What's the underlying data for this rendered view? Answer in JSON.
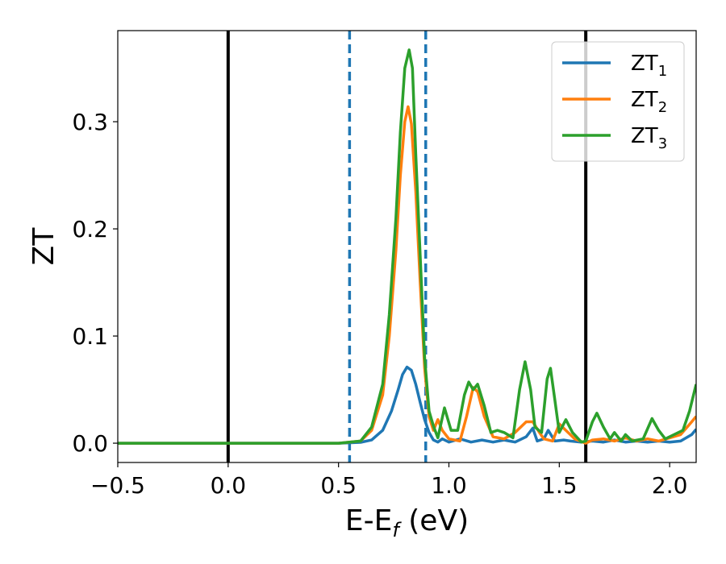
{
  "chart_data": {
    "type": "line",
    "xlabel": "E-E",
    "xlabel_sub": "f",
    "xlabel_unit": " (eV)",
    "ylabel": "ZT",
    "xlim": [
      -0.5,
      2.12
    ],
    "ylim": [
      -0.018,
      0.385
    ],
    "xticks": [
      -0.5,
      0.0,
      0.5,
      1.0,
      1.5,
      2.0
    ],
    "xtick_labels": [
      "−0.5",
      "0.0",
      "0.5",
      "1.0",
      "1.5",
      "2.0"
    ],
    "yticks": [
      0.0,
      0.1,
      0.2,
      0.3
    ],
    "ytick_labels": [
      "0.0",
      "0.1",
      "0.2",
      "0.3"
    ],
    "grid": false,
    "legend_position": "top-right",
    "vlines_solid": [
      0.0,
      1.62
    ],
    "vlines_dashed": [
      0.55,
      0.895
    ],
    "series": [
      {
        "name": "ZT",
        "name_sub": "1",
        "color": "#1f77b4",
        "points": [
          [
            -0.5,
            0
          ],
          [
            0.5,
            0
          ],
          [
            0.6,
            0.0008
          ],
          [
            0.65,
            0.003
          ],
          [
            0.7,
            0.012
          ],
          [
            0.74,
            0.03
          ],
          [
            0.77,
            0.05
          ],
          [
            0.79,
            0.064
          ],
          [
            0.81,
            0.071
          ],
          [
            0.83,
            0.068
          ],
          [
            0.85,
            0.055
          ],
          [
            0.87,
            0.038
          ],
          [
            0.89,
            0.022
          ],
          [
            0.91,
            0.01
          ],
          [
            0.93,
            0.003
          ],
          [
            0.95,
            0.001
          ],
          [
            0.97,
            0.004
          ],
          [
            1.0,
            0.001
          ],
          [
            1.05,
            0.004
          ],
          [
            1.1,
            0.001
          ],
          [
            1.15,
            0.003
          ],
          [
            1.2,
            0.001
          ],
          [
            1.25,
            0.003
          ],
          [
            1.3,
            0.001
          ],
          [
            1.35,
            0.006
          ],
          [
            1.38,
            0.014
          ],
          [
            1.4,
            0.002
          ],
          [
            1.43,
            0.004
          ],
          [
            1.45,
            0.012
          ],
          [
            1.48,
            0.002
          ],
          [
            1.52,
            0.003
          ],
          [
            1.55,
            0.002
          ],
          [
            1.6,
            0.001
          ],
          [
            1.65,
            0.002
          ],
          [
            1.7,
            0.001
          ],
          [
            1.75,
            0.003
          ],
          [
            1.8,
            0.001
          ],
          [
            1.85,
            0.002
          ],
          [
            1.9,
            0.001
          ],
          [
            1.95,
            0.002
          ],
          [
            2.0,
            0.001
          ],
          [
            2.05,
            0.002
          ],
          [
            2.1,
            0.008
          ],
          [
            2.12,
            0.013
          ]
        ]
      },
      {
        "name": "ZT",
        "name_sub": "2",
        "color": "#ff7f0e",
        "points": [
          [
            -0.5,
            0
          ],
          [
            0.5,
            0
          ],
          [
            0.6,
            0.002
          ],
          [
            0.65,
            0.012
          ],
          [
            0.7,
            0.045
          ],
          [
            0.73,
            0.1
          ],
          [
            0.76,
            0.18
          ],
          [
            0.78,
            0.25
          ],
          [
            0.8,
            0.3
          ],
          [
            0.815,
            0.314
          ],
          [
            0.83,
            0.298
          ],
          [
            0.85,
            0.235
          ],
          [
            0.87,
            0.15
          ],
          [
            0.89,
            0.07
          ],
          [
            0.91,
            0.025
          ],
          [
            0.93,
            0.012
          ],
          [
            0.95,
            0.022
          ],
          [
            0.97,
            0.012
          ],
          [
            1.0,
            0.004
          ],
          [
            1.05,
            0.002
          ],
          [
            1.08,
            0.025
          ],
          [
            1.11,
            0.052
          ],
          [
            1.13,
            0.048
          ],
          [
            1.16,
            0.025
          ],
          [
            1.2,
            0.006
          ],
          [
            1.25,
            0.004
          ],
          [
            1.3,
            0.01
          ],
          [
            1.35,
            0.02
          ],
          [
            1.38,
            0.02
          ],
          [
            1.41,
            0.01
          ],
          [
            1.43,
            0.004
          ],
          [
            1.47,
            0.002
          ],
          [
            1.5,
            0.018
          ],
          [
            1.53,
            0.012
          ],
          [
            1.57,
            0.004
          ],
          [
            1.62,
            0.0
          ],
          [
            1.65,
            0.003
          ],
          [
            1.7,
            0.004
          ],
          [
            1.75,
            0.002
          ],
          [
            1.8,
            0.005
          ],
          [
            1.85,
            0.002
          ],
          [
            1.9,
            0.004
          ],
          [
            1.95,
            0.002
          ],
          [
            2.0,
            0.005
          ],
          [
            2.05,
            0.008
          ],
          [
            2.1,
            0.02
          ],
          [
            2.12,
            0.025
          ]
        ]
      },
      {
        "name": "ZT",
        "name_sub": "3",
        "color": "#2ca02c",
        "points": [
          [
            -0.5,
            0
          ],
          [
            0.5,
            0
          ],
          [
            0.6,
            0.002
          ],
          [
            0.65,
            0.015
          ],
          [
            0.7,
            0.055
          ],
          [
            0.73,
            0.12
          ],
          [
            0.76,
            0.21
          ],
          [
            0.78,
            0.29
          ],
          [
            0.8,
            0.35
          ],
          [
            0.82,
            0.367
          ],
          [
            0.835,
            0.35
          ],
          [
            0.85,
            0.27
          ],
          [
            0.87,
            0.175
          ],
          [
            0.89,
            0.08
          ],
          [
            0.91,
            0.03
          ],
          [
            0.93,
            0.016
          ],
          [
            0.95,
            0.005
          ],
          [
            0.98,
            0.033
          ],
          [
            1.01,
            0.012
          ],
          [
            1.04,
            0.012
          ],
          [
            1.07,
            0.045
          ],
          [
            1.09,
            0.057
          ],
          [
            1.11,
            0.05
          ],
          [
            1.13,
            0.055
          ],
          [
            1.16,
            0.035
          ],
          [
            1.19,
            0.01
          ],
          [
            1.22,
            0.012
          ],
          [
            1.25,
            0.01
          ],
          [
            1.29,
            0.005
          ],
          [
            1.32,
            0.05
          ],
          [
            1.345,
            0.076
          ],
          [
            1.37,
            0.05
          ],
          [
            1.39,
            0.015
          ],
          [
            1.42,
            0.01
          ],
          [
            1.445,
            0.06
          ],
          [
            1.46,
            0.07
          ],
          [
            1.48,
            0.04
          ],
          [
            1.5,
            0.01
          ],
          [
            1.53,
            0.022
          ],
          [
            1.56,
            0.01
          ],
          [
            1.6,
            0.001
          ],
          [
            1.62,
            0.002
          ],
          [
            1.65,
            0.02
          ],
          [
            1.67,
            0.028
          ],
          [
            1.7,
            0.015
          ],
          [
            1.73,
            0.004
          ],
          [
            1.75,
            0.01
          ],
          [
            1.78,
            0.002
          ],
          [
            1.8,
            0.008
          ],
          [
            1.83,
            0.002
          ],
          [
            1.88,
            0.004
          ],
          [
            1.92,
            0.023
          ],
          [
            1.95,
            0.012
          ],
          [
            1.98,
            0.004
          ],
          [
            2.02,
            0.008
          ],
          [
            2.06,
            0.012
          ],
          [
            2.09,
            0.03
          ],
          [
            2.12,
            0.055
          ]
        ]
      }
    ]
  }
}
